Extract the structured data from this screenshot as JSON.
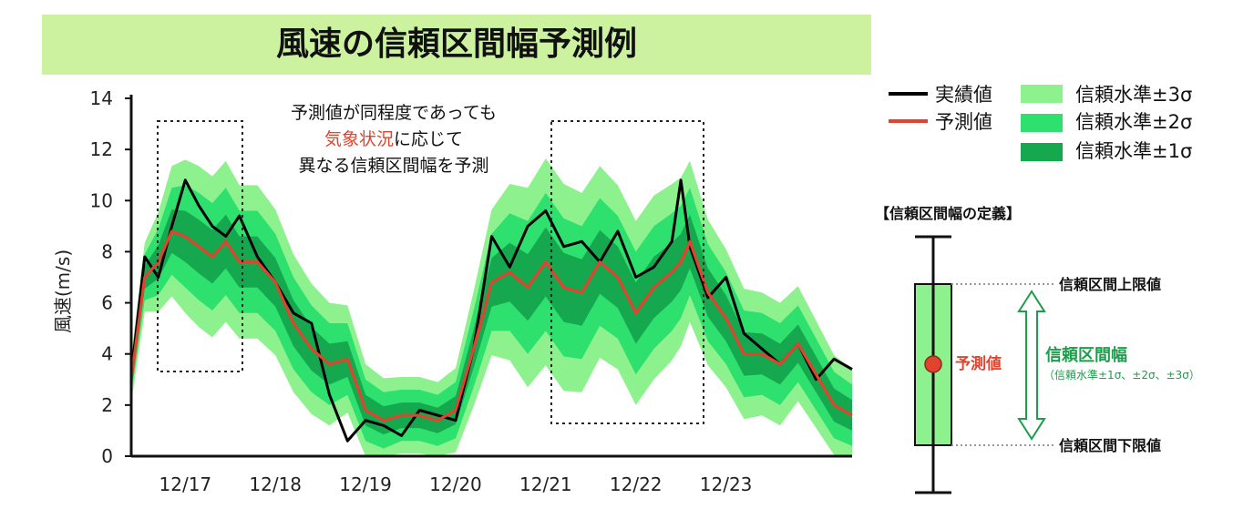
{
  "title": "風速の信頼区間幅予測例",
  "chart_data": {
    "type": "line",
    "ylabel": "風速(m/s)",
    "ylim": [
      0,
      14
    ],
    "yticks": [
      0,
      2,
      4,
      6,
      8,
      10,
      12,
      14
    ],
    "xlim": [
      16.4,
      24.4
    ],
    "xtick_labels": [
      "12/17",
      "12/18",
      "12/19",
      "12/20",
      "12/21",
      "12/22",
      "12/23"
    ],
    "xtick_values": [
      17,
      18,
      19,
      20,
      21,
      22,
      23
    ],
    "x": [
      16.4,
      16.55,
      16.7,
      16.85,
      17.0,
      17.15,
      17.3,
      17.45,
      17.6,
      17.8,
      18.0,
      18.2,
      18.4,
      18.6,
      18.8,
      19.0,
      19.2,
      19.4,
      19.6,
      19.8,
      20.0,
      20.2,
      20.4,
      20.6,
      20.8,
      21.0,
      21.2,
      21.4,
      21.6,
      21.8,
      22.0,
      22.2,
      22.4,
      22.5,
      22.6,
      22.8,
      23.0,
      23.2,
      23.4,
      23.6,
      23.8,
      24.0,
      24.2,
      24.4
    ],
    "series": [
      {
        "name": "実績値",
        "values": [
          3.2,
          7.8,
          7.0,
          9.0,
          10.8,
          9.8,
          9.0,
          8.6,
          9.4,
          7.8,
          6.8,
          5.6,
          5.2,
          2.4,
          0.6,
          1.4,
          1.2,
          0.8,
          1.8,
          1.6,
          1.4,
          4.2,
          8.6,
          7.4,
          9.0,
          9.6,
          8.2,
          8.4,
          7.6,
          8.8,
          7.0,
          7.4,
          8.4,
          10.8,
          8.2,
          6.2,
          7.0,
          4.8,
          4.2,
          3.6,
          4.4,
          3.0,
          3.8,
          3.4
        ]
      },
      {
        "name": "予測値",
        "values": [
          3.0,
          7.0,
          7.6,
          8.8,
          8.6,
          8.2,
          7.8,
          8.4,
          7.6,
          7.6,
          6.8,
          5.2,
          4.2,
          3.6,
          3.8,
          1.8,
          1.4,
          1.6,
          1.6,
          1.4,
          1.8,
          4.2,
          6.8,
          7.2,
          6.6,
          7.6,
          6.6,
          6.4,
          7.6,
          7.0,
          5.6,
          6.6,
          7.2,
          7.6,
          8.4,
          6.4,
          5.4,
          4.0,
          4.0,
          3.6,
          4.4,
          3.2,
          2.0,
          1.6
        ]
      }
    ],
    "bands": [
      {
        "name": "信頼水準±3σ",
        "color": "#8df28d",
        "sigma": 3
      },
      {
        "name": "信頼水準±2σ",
        "color": "#2ee06e",
        "sigma": 2
      },
      {
        "name": "信頼水準±1σ",
        "color": "#16a84e",
        "sigma": 1
      }
    ],
    "sigma": [
      0.3,
      0.45,
      0.65,
      0.85,
      1.0,
      1.05,
      1.05,
      1.05,
      1.0,
      1.0,
      0.95,
      0.9,
      0.85,
      0.8,
      0.7,
      0.6,
      0.55,
      0.5,
      0.5,
      0.5,
      0.55,
      0.75,
      0.95,
      1.15,
      1.3,
      1.35,
      1.35,
      1.3,
      1.25,
      1.2,
      1.2,
      1.2,
      1.15,
      1.1,
      1.05,
      0.95,
      0.9,
      0.85,
      0.8,
      0.8,
      0.75,
      0.7,
      0.65,
      0.6
    ],
    "colors": {
      "actual": "#000000",
      "predicted": "#e0442f",
      "highlight": "#e0442f",
      "range_text": "#1c9e4a"
    },
    "annotation": {
      "line1": "予測値が同程度であっても",
      "highlight": "気象状況",
      "line2_rest": "に応じて",
      "line3": "異なる信頼区間幅を予測"
    }
  },
  "legend": [
    {
      "label": "実績値",
      "kind": "line",
      "color": "#000000"
    },
    {
      "label": "予測値",
      "kind": "line",
      "color": "#e0442f"
    },
    {
      "label": "信頼水準±3σ",
      "kind": "box",
      "color": "#8df28d"
    },
    {
      "label": "信頼水準±2σ",
      "kind": "box",
      "color": "#2ee06e"
    },
    {
      "label": "信頼水準±1σ",
      "kind": "box",
      "color": "#16a84e"
    }
  ],
  "definition": {
    "heading": "【信頼区間幅の定義】",
    "upper_label": "信頼区間上限値",
    "lower_label": "信頼区間下限値",
    "pred_label": "予測値",
    "range_label": "信頼区間幅",
    "range_sub": "（信頼水準±1σ、±2σ、±3σ）"
  }
}
